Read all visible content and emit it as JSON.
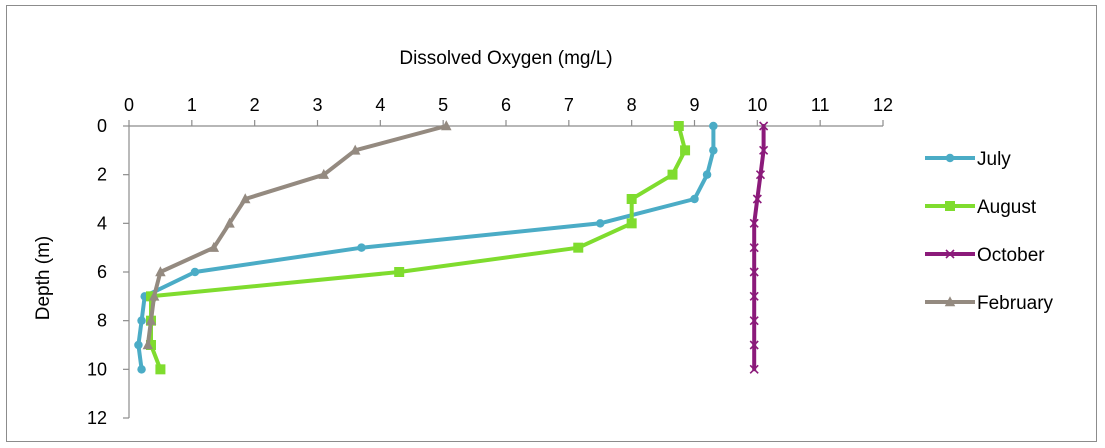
{
  "chart_data": {
    "type": "line",
    "orientation": "depth-profile",
    "title": "",
    "xlabel": "Dissolved Oxygen (mg/L)",
    "ylabel": "Depth (m)",
    "xlim": [
      0,
      12
    ],
    "ylim": [
      0,
      12
    ],
    "x_ticks": [
      "0",
      "1",
      "2",
      "3",
      "4",
      "5",
      "6",
      "7",
      "8",
      "9",
      "10",
      "11",
      "12"
    ],
    "y_ticks": [
      "0",
      "2",
      "4",
      "6",
      "8",
      "10",
      "12"
    ],
    "x_axis_position": "top",
    "y_axis_inverted": true,
    "grid": false,
    "legend_position": "right",
    "series": [
      {
        "name": "July",
        "color": "#4bacc6",
        "marker": "circle",
        "points": [
          {
            "do": 9.3,
            "depth": 0
          },
          {
            "do": 9.3,
            "depth": 1
          },
          {
            "do": 9.2,
            "depth": 2
          },
          {
            "do": 9.0,
            "depth": 3
          },
          {
            "do": 7.5,
            "depth": 4
          },
          {
            "do": 3.7,
            "depth": 5
          },
          {
            "do": 1.05,
            "depth": 6
          },
          {
            "do": 0.25,
            "depth": 7
          },
          {
            "do": 0.2,
            "depth": 8
          },
          {
            "do": 0.15,
            "depth": 9
          },
          {
            "do": 0.2,
            "depth": 10
          }
        ]
      },
      {
        "name": "August",
        "color": "#7fdc2e",
        "marker": "square",
        "points": [
          {
            "do": 8.75,
            "depth": 0
          },
          {
            "do": 8.85,
            "depth": 1
          },
          {
            "do": 8.65,
            "depth": 2
          },
          {
            "do": 8.0,
            "depth": 3
          },
          {
            "do": 8.0,
            "depth": 4
          },
          {
            "do": 7.15,
            "depth": 5
          },
          {
            "do": 4.3,
            "depth": 6
          },
          {
            "do": 0.35,
            "depth": 7
          },
          {
            "do": 0.35,
            "depth": 8
          },
          {
            "do": 0.35,
            "depth": 9
          },
          {
            "do": 0.5,
            "depth": 10
          }
        ]
      },
      {
        "name": "October",
        "color": "#8b1a7a",
        "marker": "x",
        "points": [
          {
            "do": 10.1,
            "depth": 0
          },
          {
            "do": 10.1,
            "depth": 1
          },
          {
            "do": 10.05,
            "depth": 2
          },
          {
            "do": 10.0,
            "depth": 3
          },
          {
            "do": 9.95,
            "depth": 4
          },
          {
            "do": 9.95,
            "depth": 5
          },
          {
            "do": 9.95,
            "depth": 6
          },
          {
            "do": 9.95,
            "depth": 7
          },
          {
            "do": 9.95,
            "depth": 8
          },
          {
            "do": 9.95,
            "depth": 9
          },
          {
            "do": 9.95,
            "depth": 10
          }
        ]
      },
      {
        "name": "February",
        "color": "#948a80",
        "marker": "triangle",
        "points": [
          {
            "do": 5.05,
            "depth": 0
          },
          {
            "do": 3.6,
            "depth": 1
          },
          {
            "do": 3.1,
            "depth": 2
          },
          {
            "do": 1.85,
            "depth": 3
          },
          {
            "do": 1.6,
            "depth": 4
          },
          {
            "do": 1.35,
            "depth": 5
          },
          {
            "do": 0.5,
            "depth": 6
          },
          {
            "do": 0.4,
            "depth": 7
          },
          {
            "do": 0.35,
            "depth": 8
          },
          {
            "do": 0.3,
            "depth": 9
          }
        ]
      }
    ]
  }
}
